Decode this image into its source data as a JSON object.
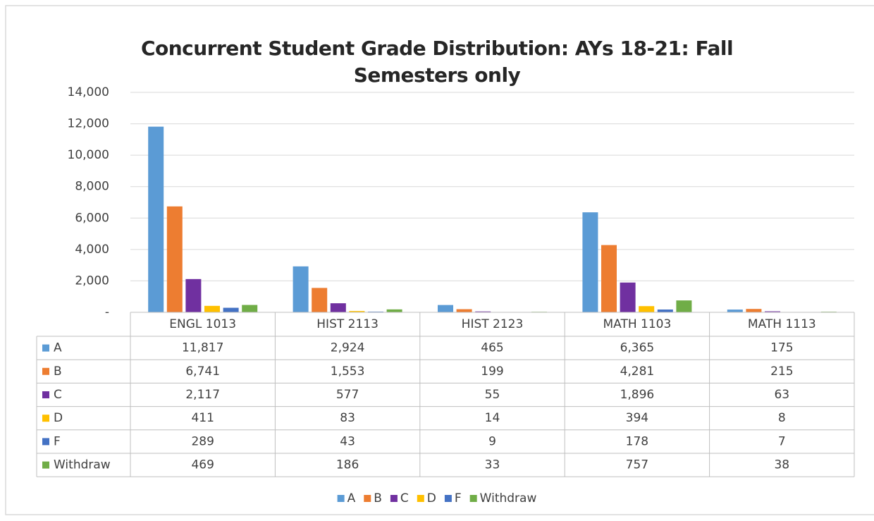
{
  "chart_data": {
    "type": "bar",
    "title": "Concurrent Student Grade Distribution: AYs 18-21: Fall Semesters only",
    "categories": [
      "ENGL 1013",
      "HIST 2113",
      "HIST 2123",
      "MATH 1103",
      "MATH 1113"
    ],
    "series": [
      {
        "name": "A",
        "color": "#5b9bd5",
        "values": [
          11817,
          2924,
          465,
          6365,
          175
        ],
        "value_labels": [
          "11,817",
          "2,924",
          "465",
          "6,365",
          "175"
        ]
      },
      {
        "name": "B",
        "color": "#ed7d31",
        "values": [
          6741,
          1553,
          199,
          4281,
          215
        ],
        "value_labels": [
          "6,741",
          "1,553",
          "199",
          "4,281",
          "215"
        ]
      },
      {
        "name": "C",
        "color": "#7030a0",
        "values": [
          2117,
          577,
          55,
          1896,
          63
        ],
        "value_labels": [
          "2,117",
          "577",
          "55",
          "1,896",
          "63"
        ]
      },
      {
        "name": "D",
        "color": "#ffc000",
        "values": [
          411,
          83,
          14,
          394,
          8
        ],
        "value_labels": [
          "411",
          "83",
          "14",
          "394",
          "8"
        ]
      },
      {
        "name": "F",
        "color": "#4472c4",
        "values": [
          289,
          43,
          9,
          178,
          7
        ],
        "value_labels": [
          "289",
          "43",
          "9",
          "178",
          "7"
        ]
      },
      {
        "name": "Withdraw",
        "color": "#70ad47",
        "values": [
          469,
          186,
          33,
          757,
          38
        ],
        "value_labels": [
          "469",
          "186",
          "33",
          "757",
          "38"
        ]
      }
    ],
    "ylim": [
      0,
      14000
    ],
    "yticks": [
      {
        "value": 0,
        "label": "-"
      },
      {
        "value": 2000,
        "label": "2,000"
      },
      {
        "value": 4000,
        "label": "4,000"
      },
      {
        "value": 6000,
        "label": "6,000"
      },
      {
        "value": 8000,
        "label": "8,000"
      },
      {
        "value": 10000,
        "label": "10,000"
      },
      {
        "value": 12000,
        "label": "12,000"
      },
      {
        "value": 14000,
        "label": "14,000"
      }
    ],
    "grid": true,
    "legend": "bottom"
  }
}
